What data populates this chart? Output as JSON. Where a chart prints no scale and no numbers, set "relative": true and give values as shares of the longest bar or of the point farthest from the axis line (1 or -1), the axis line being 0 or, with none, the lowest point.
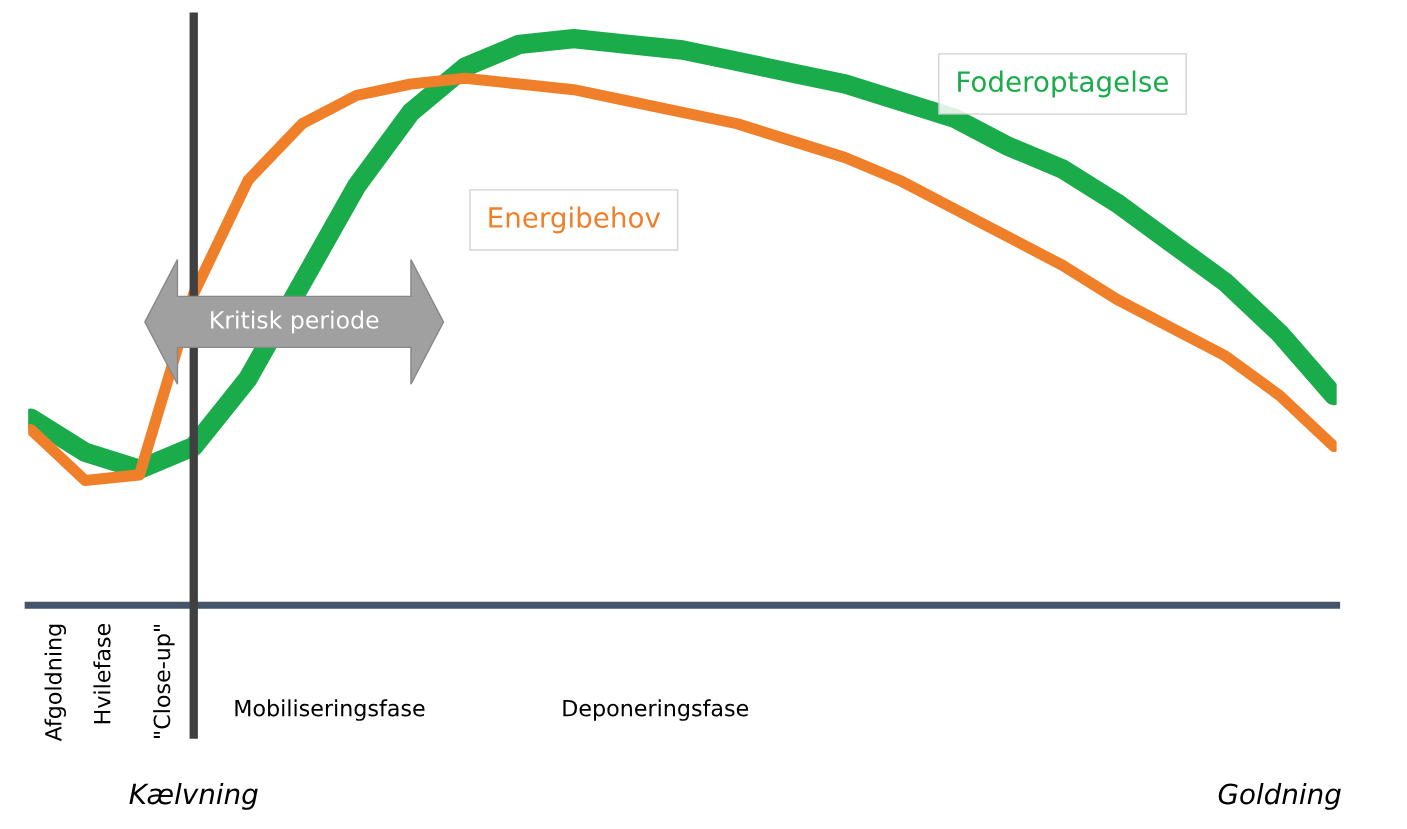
{
  "chart_data": {
    "type": "line",
    "relative": true,
    "legend": false,
    "grid": false,
    "marker": "none",
    "line_style": "solid",
    "categories": [
      null,
      null,
      null,
      "Kælvning",
      null,
      null,
      null,
      null,
      null,
      null,
      null,
      null,
      null,
      null,
      null,
      null,
      null,
      null,
      null,
      null,
      null,
      null,
      null,
      "Goldning",
      null
    ],
    "series": [
      {
        "name": "Foderoptagelse",
        "color": "#1aab4b",
        "values": [
          0.33,
          0.27,
          0.24,
          0.28,
          0.4,
          0.57,
          0.74,
          0.87,
          0.95,
          0.99,
          1.0,
          0.99,
          0.98,
          0.96,
          0.94,
          0.92,
          0.89,
          0.86,
          0.81,
          0.77,
          0.71,
          0.64,
          0.57,
          0.48,
          0.37
        ]
      },
      {
        "name": "Energibehov",
        "color": "#f07f2a",
        "values": [
          0.31,
          0.22,
          0.23,
          0.55,
          0.75,
          0.85,
          0.9,
          0.92,
          0.93,
          0.92,
          0.91,
          0.89,
          0.87,
          0.85,
          0.82,
          0.79,
          0.75,
          0.7,
          0.65,
          0.6,
          0.54,
          0.49,
          0.44,
          0.37,
          0.28
        ]
      }
    ],
    "ref_lines": [
      {
        "axis": "x",
        "value": "Kælvning",
        "color": "#404040"
      }
    ],
    "annotations": [
      "Kritisk periode",
      "Afgoldning",
      "Hvilefase",
      "\"Close-up\"",
      "Mobiliseringsfase",
      "Deponeringsfase"
    ]
  }
}
